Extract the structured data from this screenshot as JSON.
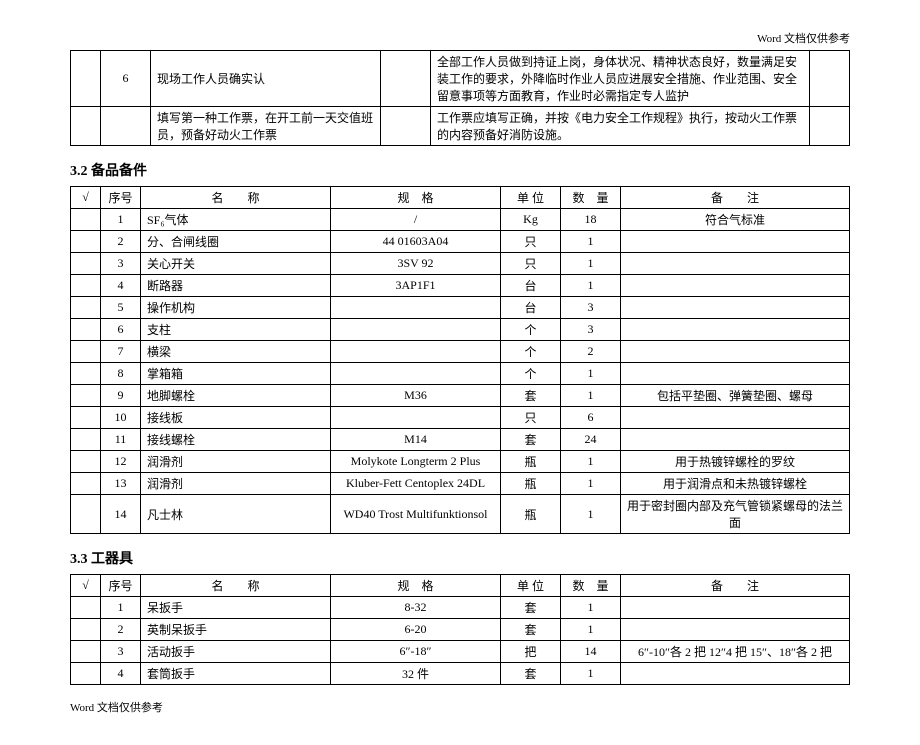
{
  "header_note": "Word 文档仅供参考",
  "footer_note": "Word 文档仅供参考",
  "intro_table": {
    "rows": [
      {
        "seq": "6",
        "desc": "现场工作人员确实认",
        "blank": "",
        "detail": "全部工作人员做到持证上岗，身体状况、精神状态良好，数量满足安装工作的要求，外降临时作业人员应进展安全措施、作业范围、安全留意事项等方面教育，作业时必需指定专人监护",
        "tail": ""
      },
      {
        "seq": "",
        "desc": "填写第一种工作票，在开工前一天交值班员，预备好动火工作票",
        "blank": "",
        "detail": "工作票应填写正确，并按《电力安全工作规程》执行，按动火工作票的内容预备好消防设施。",
        "tail": ""
      }
    ]
  },
  "sec32": {
    "title": "3.2 备品备件",
    "headers": {
      "check": "√",
      "seq": "序号",
      "name": "名　　称",
      "spec": "规　格",
      "unit": "单 位",
      "qty": "数　量",
      "remark": "备　　注"
    },
    "rows": [
      {
        "seq": "1",
        "name": "SF₆气体",
        "spec": "/",
        "unit": "Kg",
        "qty": "18",
        "remark": "符合气标准"
      },
      {
        "seq": "2",
        "name": "分、合闸线圈",
        "spec": "44 01603A04",
        "unit": "只",
        "qty": "1",
        "remark": ""
      },
      {
        "seq": "3",
        "name": "关心开关",
        "spec": "3SV 92",
        "unit": "只",
        "qty": "1",
        "remark": ""
      },
      {
        "seq": "4",
        "name": "断路器",
        "spec": "3AP1F1",
        "unit": "台",
        "qty": "1",
        "remark": ""
      },
      {
        "seq": "5",
        "name": "操作机构",
        "spec": "",
        "unit": "台",
        "qty": "3",
        "remark": ""
      },
      {
        "seq": "6",
        "name": "支柱",
        "spec": "",
        "unit": "个",
        "qty": "3",
        "remark": ""
      },
      {
        "seq": "7",
        "name": "横梁",
        "spec": "",
        "unit": "个",
        "qty": "2",
        "remark": ""
      },
      {
        "seq": "8",
        "name": "掌箱箱",
        "spec": "",
        "unit": "个",
        "qty": "1",
        "remark": ""
      },
      {
        "seq": "9",
        "name": "地脚螺栓",
        "spec": "M36",
        "unit": "套",
        "qty": "1",
        "remark": "包括平垫圈、弹簧垫圈、螺母"
      },
      {
        "seq": "10",
        "name": "接线板",
        "spec": "",
        "unit": "只",
        "qty": "6",
        "remark": ""
      },
      {
        "seq": "11",
        "name": "接线螺栓",
        "spec": "M14",
        "unit": "套",
        "qty": "24",
        "remark": ""
      },
      {
        "seq": "12",
        "name": "润滑剂",
        "spec": "Molykote Longterm 2 Plus",
        "unit": "瓶",
        "qty": "1",
        "remark": "用于热镀锌螺栓的罗纹"
      },
      {
        "seq": "13",
        "name": "润滑剂",
        "spec": "Kluber-Fett Centoplex 24DL",
        "unit": "瓶",
        "qty": "1",
        "remark": "用于润滑点和未热镀锌螺栓"
      },
      {
        "seq": "14",
        "name": "凡士林",
        "spec": "WD40 Trost Multifunktionsol",
        "unit": "瓶",
        "qty": "1",
        "remark": "用于密封圈内部及充气管锁紧螺母的法兰面"
      }
    ]
  },
  "sec33": {
    "title": "3.3 工器具",
    "headers": {
      "check": "√",
      "seq": "序号",
      "name": "名　　称",
      "spec": "规　格",
      "unit": "单 位",
      "qty": "数　量",
      "remark": "备　　注"
    },
    "rows": [
      {
        "seq": "1",
        "name": "呆扳手",
        "spec": "8-32",
        "unit": "套",
        "qty": "1",
        "remark": ""
      },
      {
        "seq": "2",
        "name": "英制呆扳手",
        "spec": "6-20",
        "unit": "套",
        "qty": "1",
        "remark": ""
      },
      {
        "seq": "3",
        "name": "活动扳手",
        "spec": "6″-18″",
        "unit": "把",
        "qty": "14",
        "remark": "6″-10″各 2 把 12″4 把 15″、18″各 2 把"
      },
      {
        "seq": "4",
        "name": "套筒扳手",
        "spec": "32 件",
        "unit": "套",
        "qty": "1",
        "remark": ""
      }
    ]
  }
}
